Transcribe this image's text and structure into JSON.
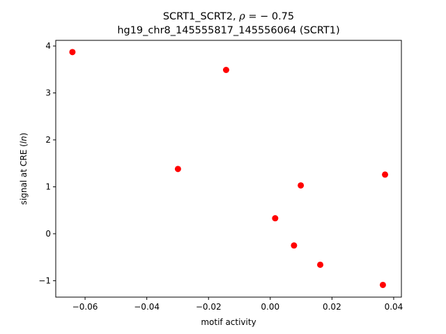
{
  "chart_data": {
    "type": "scatter",
    "title_line1_prefix": "SCRT1_SCRT2, ",
    "title_rho": "ρ",
    "title_line1_suffix": " = − 0.75",
    "title_line2": "hg19_chr8_145555817_145556064 (SCRT1)",
    "xlabel": "motif activity",
    "ylabel_prefix": "signal at CRE (",
    "ylabel_italic": "ln",
    "ylabel_suffix": ")",
    "xlim": [
      -0.0695,
      0.0425
    ],
    "ylim": [
      -1.35,
      4.12
    ],
    "xticks": [
      {
        "value": -0.06,
        "label": "−0.06"
      },
      {
        "value": -0.04,
        "label": "−0.04"
      },
      {
        "value": -0.02,
        "label": "−0.02"
      },
      {
        "value": 0.0,
        "label": "0.00"
      },
      {
        "value": 0.02,
        "label": "0.02"
      },
      {
        "value": 0.04,
        "label": "0.04"
      }
    ],
    "yticks": [
      {
        "value": -1,
        "label": "−1"
      },
      {
        "value": 0,
        "label": "0"
      },
      {
        "value": 1,
        "label": "1"
      },
      {
        "value": 2,
        "label": "2"
      },
      {
        "value": 3,
        "label": "3"
      },
      {
        "value": 4,
        "label": "4"
      }
    ],
    "marker_color": "#ff0000",
    "points": [
      {
        "x": -0.0641,
        "y": 3.87
      },
      {
        "x": -0.0143,
        "y": 3.49
      },
      {
        "x": -0.0299,
        "y": 1.38
      },
      {
        "x": 0.0372,
        "y": 1.26
      },
      {
        "x": 0.0099,
        "y": 1.03
      },
      {
        "x": 0.0016,
        "y": 0.33
      },
      {
        "x": 0.0077,
        "y": -0.25
      },
      {
        "x": 0.0162,
        "y": -0.66
      },
      {
        "x": 0.0365,
        "y": -1.09
      }
    ]
  }
}
